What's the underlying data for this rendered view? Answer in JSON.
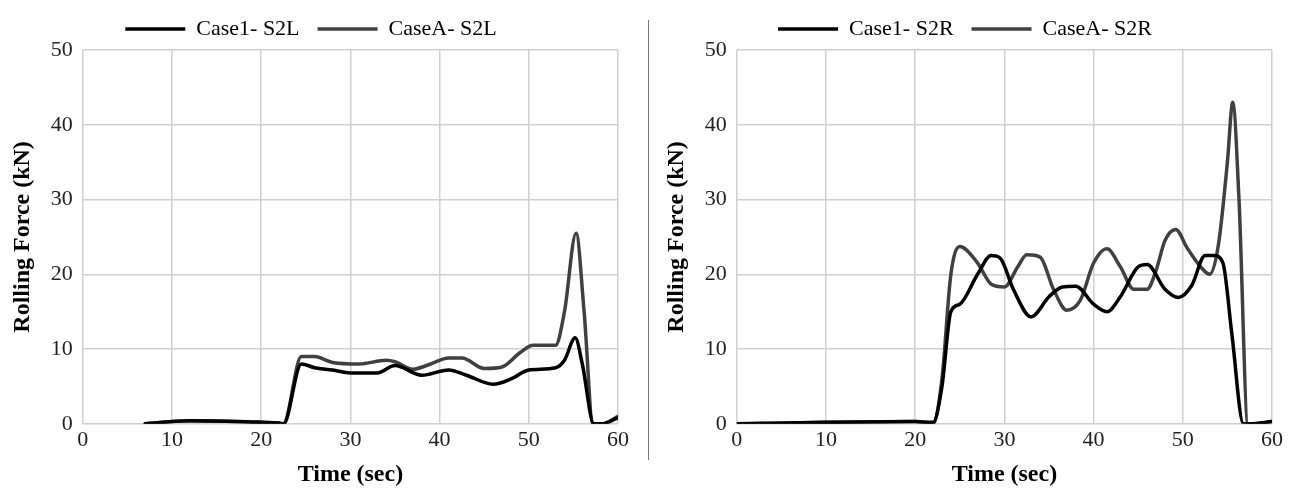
{
  "chart_data": [
    {
      "type": "line",
      "xlabel": "Time (sec)",
      "ylabel": "Rolling Force (kN)",
      "xlim": [
        0,
        60
      ],
      "xticks": [
        0,
        10,
        20,
        30,
        40,
        50,
        60
      ],
      "ylim": [
        0,
        50
      ],
      "yticks": [
        0,
        10,
        20,
        30,
        40,
        50
      ],
      "grid": true,
      "legend": "top",
      "marker": "none",
      "x": [
        7,
        12,
        20,
        22,
        22.5,
        24.5,
        26,
        28,
        30,
        33,
        35,
        38,
        41,
        43,
        46,
        48,
        50,
        53,
        54,
        55.2,
        56,
        57.3,
        58.2,
        60
      ],
      "series": [
        {
          "name": "Case1- S2L",
          "color": "#000000",
          "values": [
            0,
            0.4,
            0.2,
            0.1,
            0,
            8,
            7.5,
            7.2,
            6.8,
            6.8,
            7.8,
            6.5,
            7.2,
            6.5,
            5.3,
            6,
            7.2,
            7.5,
            8.5,
            11.5,
            8,
            0,
            0,
            0.8
          ]
        },
        {
          "name": "CaseA- S2L",
          "color": "#404040",
          "x": [
            7,
            12,
            20,
            22,
            22.5,
            24.5,
            26,
            28,
            31,
            34,
            35,
            37,
            39,
            41,
            42.5,
            45,
            47,
            49,
            50.5,
            53,
            54,
            55.3,
            56.2,
            57.2,
            58.2,
            60
          ],
          "values": [
            0,
            0.4,
            0.2,
            0.1,
            0,
            9,
            9,
            8.2,
            8,
            8.5,
            8.3,
            7.3,
            8,
            8.8,
            8.8,
            7.4,
            7.6,
            9.5,
            10.5,
            10.5,
            15,
            25.5,
            15,
            0,
            0,
            1
          ]
        }
      ]
    },
    {
      "type": "line",
      "xlabel": "Time (sec)",
      "ylabel": "Rolling Force (kN)",
      "xlim": [
        0,
        60
      ],
      "xticks": [
        0,
        10,
        20,
        30,
        40,
        50,
        60
      ],
      "ylim": [
        0,
        50
      ],
      "yticks": [
        0,
        10,
        20,
        30,
        40,
        50
      ],
      "grid": true,
      "legend": "top",
      "marker": "none",
      "x": [
        0,
        10,
        20,
        22,
        23,
        24,
        25,
        27,
        28.5,
        29.5,
        31,
        33,
        35,
        36.5,
        38,
        40,
        41.5,
        43,
        45,
        46,
        48,
        49.5,
        51,
        52.5,
        53.5,
        54.5,
        55.5,
        56.8,
        57.5,
        60
      ],
      "series": [
        {
          "name": "Case1- S2R",
          "color": "#000000",
          "values": [
            0,
            0.2,
            0.3,
            0.2,
            5,
            15,
            16,
            20,
            22.5,
            22.2,
            18,
            14.3,
            17,
            18.3,
            18.4,
            16,
            15,
            17,
            21,
            21.3,
            18,
            16.9,
            18.5,
            22.5,
            22.5,
            21.5,
            12,
            0,
            0,
            0.3
          ]
        },
        {
          "name": "CaseA- S2R",
          "color": "#404040",
          "x": [
            0,
            20,
            22,
            23,
            24,
            25,
            27,
            28.5,
            30,
            31.5,
            32.5,
            34,
            35.5,
            37,
            38.5,
            40,
            41.5,
            43,
            44.5,
            46,
            47,
            48,
            49.2,
            50.5,
            52,
            53,
            54,
            55,
            55.6,
            56.3,
            57.3,
            58,
            60
          ],
          "values": [
            0,
            0.3,
            0,
            6,
            20,
            23.7,
            21.5,
            18.7,
            18.3,
            21,
            22.6,
            22.3,
            18,
            15.2,
            16.5,
            21.5,
            23.4,
            21,
            18,
            18,
            20.5,
            24.5,
            26,
            23.5,
            21,
            20,
            24,
            35,
            43,
            30,
            0,
            0,
            0.3
          ]
        }
      ]
    }
  ]
}
